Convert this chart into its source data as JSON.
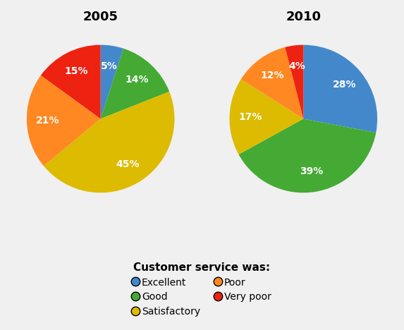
{
  "title_2005": "2005",
  "title_2010": "2010",
  "legend_title": "Customer service was:",
  "colors": {
    "Excellent": "#4488CC",
    "Good": "#44AA33",
    "Satisfactory": "#DDBB00",
    "Poor": "#FF8822",
    "Very poor": "#EE2211"
  },
  "data_2005_order": [
    "Excellent",
    "Good",
    "Satisfactory",
    "Poor",
    "Very poor"
  ],
  "data_2005": [
    5,
    14,
    45,
    21,
    15
  ],
  "data_2010_order": [
    "Excellent",
    "Good",
    "Satisfactory",
    "Poor",
    "Very poor"
  ],
  "data_2010": [
    28,
    39,
    17,
    12,
    4
  ],
  "legend_col1": [
    "Excellent",
    "Satisfactory",
    "Very poor"
  ],
  "legend_col2": [
    "Good",
    "Poor"
  ],
  "background_color": "#f0f0f0",
  "title_fontsize": 13,
  "label_fontsize": 10,
  "legend_title_fontsize": 11,
  "legend_fontsize": 10,
  "startangle_2005": 90,
  "startangle_2010": 90
}
